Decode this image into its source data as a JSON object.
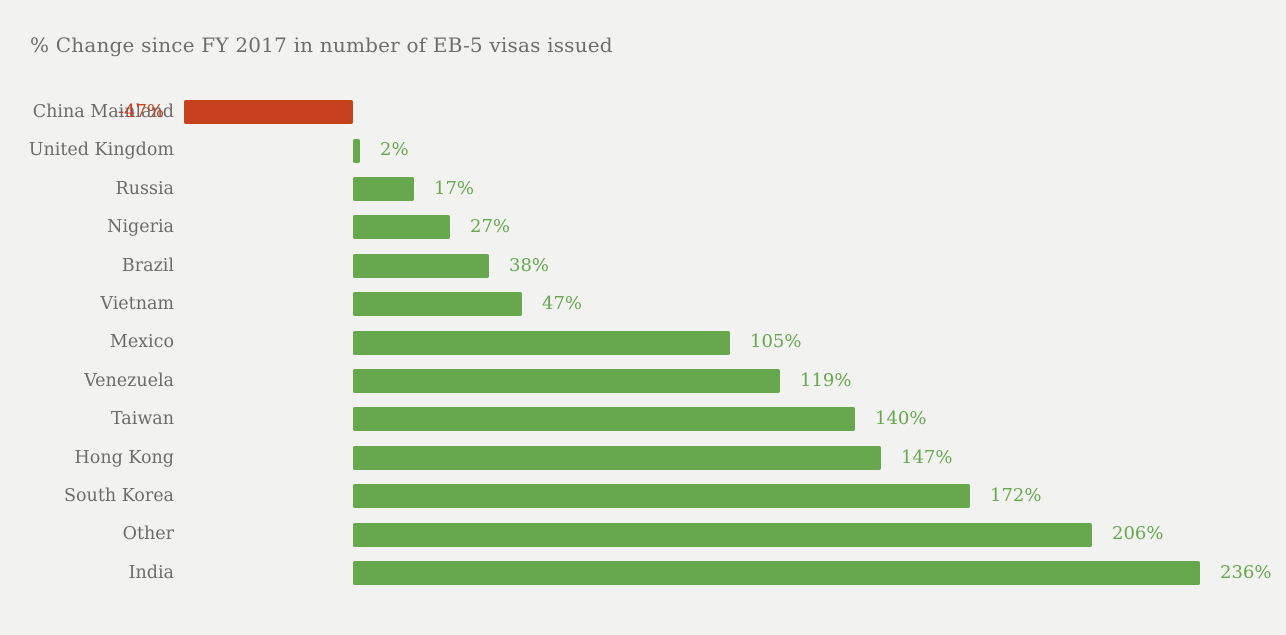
{
  "title": "% Change since FY 2017 in number of EB-5 visas issued",
  "colors": {
    "positive_bar": "#67a84f",
    "negative_bar": "#c6401f",
    "positive_value_text": "#67a84f",
    "negative_value_text": "#c6401f",
    "category_text": "#6b6b6b",
    "title_text": "#6d6d6d",
    "background": "#f2f2f0"
  },
  "chart_data": {
    "type": "bar",
    "orientation": "horizontal",
    "title": "% Change since FY 2017 in number of EB-5 visas issued",
    "xlabel": "",
    "ylabel": "",
    "grid": false,
    "legend": false,
    "axis_baseline_value": 0,
    "xlim": [
      -47,
      236
    ],
    "categories": [
      "China Mainland",
      "United Kingdom",
      "Russia",
      "Nigeria",
      "Brazil",
      "Vietnam",
      "Mexico",
      "Venezuela",
      "Taiwan",
      "Hong Kong",
      "South Korea",
      "Other",
      "India"
    ],
    "values": [
      -47,
      2,
      17,
      27,
      38,
      47,
      105,
      119,
      140,
      147,
      172,
      206,
      236
    ],
    "value_labels": [
      "-47%",
      "2%",
      "17%",
      "27%",
      "38%",
      "47%",
      "105%",
      "119%",
      "140%",
      "147%",
      "172%",
      "206%",
      "236%"
    ]
  }
}
